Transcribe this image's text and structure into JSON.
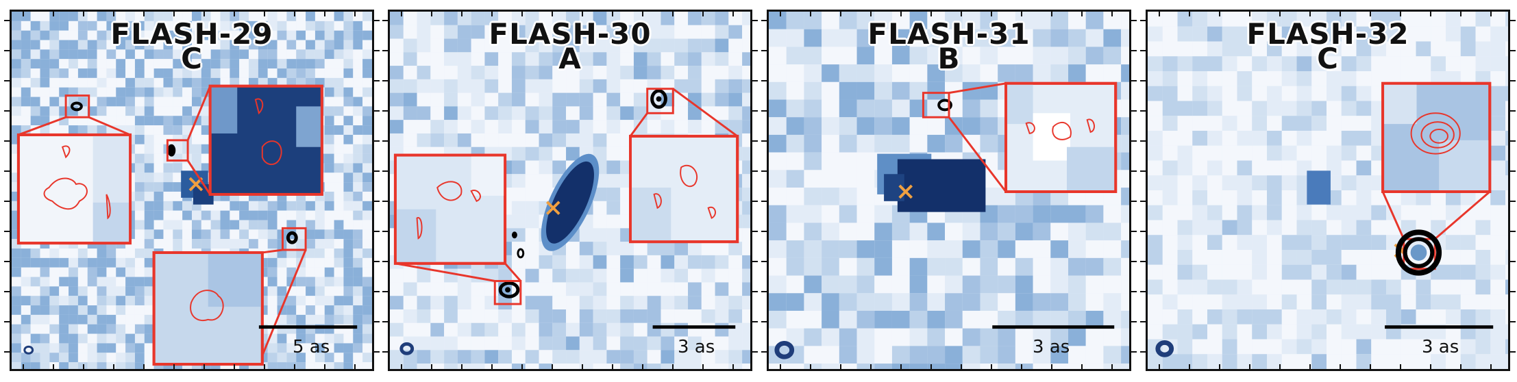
{
  "panels": [
    {
      "name_line1": "FLASH-29",
      "name_line2": "C",
      "scalebar": "5 as"
    },
    {
      "name_line1": "FLASH-30",
      "name_line2": "A",
      "scalebar": "3 as"
    },
    {
      "name_line1": "FLASH-31",
      "name_line2": "B",
      "scalebar": "3 as"
    },
    {
      "name_line1": "FLASH-32",
      "name_line2": "C",
      "scalebar": "3 as"
    }
  ],
  "colors": {
    "inset_border": "#e8362b",
    "contour_black": "#000000",
    "marker": "#f0a040",
    "beam": "#1f3d7a",
    "map_dark": "#13306a",
    "map_light": "#f4f7fc"
  }
}
